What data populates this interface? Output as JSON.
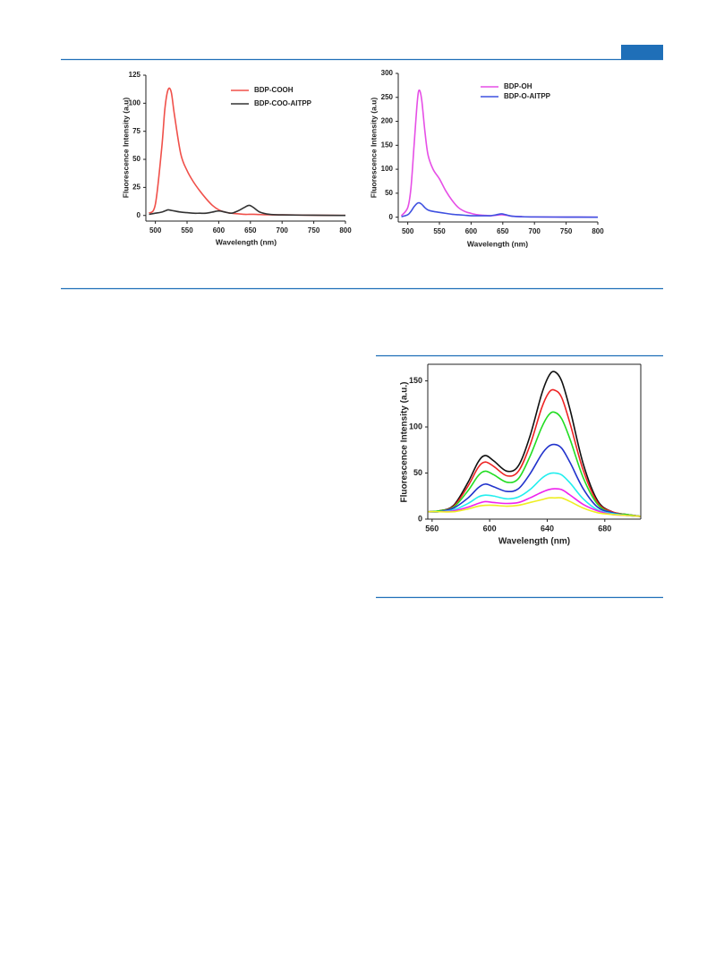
{
  "chart_data": [
    {
      "type": "line",
      "ylabel": "Fluorescence Intensity (a.u)",
      "xlabel": "Wavelength (nm)",
      "x": [
        490,
        500,
        510,
        515,
        520,
        525,
        530,
        540,
        550,
        560,
        570,
        580,
        590,
        600,
        610,
        620,
        630,
        640,
        648,
        655,
        665,
        680,
        700,
        750,
        800
      ],
      "series": [
        {
          "name": "BDP-COOH",
          "color": "#f0504a",
          "values": [
            2,
            10,
            60,
            95,
            112,
            110,
            90,
            55,
            40,
            30,
            22,
            15,
            9,
            5,
            3,
            2,
            1.5,
            1,
            1,
            1,
            0.8,
            0.6,
            0.5,
            0.2,
            0
          ]
        },
        {
          "name": "BDP-COO-AITPP",
          "color": "#333333",
          "values": [
            1,
            2,
            3,
            4,
            5,
            4.5,
            4,
            3,
            2.5,
            2,
            2,
            2,
            3,
            4,
            3,
            2,
            4,
            7,
            9,
            7,
            3,
            1,
            0.5,
            0.2,
            0
          ]
        }
      ],
      "xlim": [
        485,
        800
      ],
      "ylim": [
        -5,
        125
      ],
      "xticks": [
        500,
        550,
        600,
        650,
        700,
        750,
        800
      ],
      "yticks": [
        0,
        25,
        50,
        75,
        100,
        125
      ],
      "legend": "upper right"
    },
    {
      "type": "line",
      "ylabel": "Fluorescence Intensity (a.u)",
      "xlabel": "Wavelength (nm)",
      "x": [
        490,
        500,
        505,
        510,
        515,
        518,
        522,
        527,
        532,
        540,
        550,
        560,
        570,
        580,
        590,
        600,
        610,
        620,
        630,
        640,
        648,
        655,
        665,
        680,
        700,
        750,
        800
      ],
      "series": [
        {
          "name": "BDP-OH",
          "color": "#e64fe6",
          "values": [
            3,
            20,
            60,
            150,
            240,
            265,
            245,
            180,
            130,
            100,
            80,
            55,
            35,
            20,
            12,
            8,
            5,
            4,
            3,
            4,
            5,
            4,
            2,
            1,
            0.5,
            0.2,
            0
          ]
        },
        {
          "name": "BDP-O-AITPP",
          "color": "#3f51e0",
          "values": [
            1,
            5,
            12,
            22,
            29,
            30,
            27,
            20,
            15,
            12,
            10,
            8,
            6,
            5,
            4,
            3,
            3,
            3,
            3,
            5,
            7,
            5,
            2,
            1,
            0.5,
            0.2,
            0
          ]
        }
      ],
      "xlim": [
        485,
        800
      ],
      "ylim": [
        -10,
        300
      ],
      "xticks": [
        500,
        550,
        600,
        650,
        700,
        750,
        800
      ],
      "yticks": [
        0,
        50,
        100,
        150,
        200,
        250,
        300
      ],
      "legend": "upper right"
    },
    {
      "type": "line",
      "ylabel": "Fluorescence Intensity (a.u.)",
      "xlabel": "Wavelength (nm)",
      "x": [
        557,
        565,
        575,
        585,
        592,
        597,
        603,
        612,
        620,
        628,
        636,
        641,
        645,
        650,
        656,
        665,
        675,
        685,
        695,
        705
      ],
      "series": [
        {
          "color": "#111111",
          "values": [
            8,
            9,
            15,
            40,
            62,
            69,
            63,
            52,
            58,
            90,
            135,
            155,
            160,
            150,
            118,
            60,
            20,
            8,
            5,
            3
          ]
        },
        {
          "color": "#ee2222",
          "values": [
            8,
            9,
            14,
            36,
            56,
            62,
            57,
            47,
            52,
            80,
            120,
            137,
            140,
            132,
            103,
            53,
            18,
            8,
            5,
            3
          ]
        },
        {
          "color": "#22dd22",
          "values": [
            8,
            9,
            13,
            31,
            47,
            52,
            48,
            40,
            44,
            68,
            99,
            113,
            116,
            109,
            86,
            45,
            16,
            7,
            5,
            3
          ]
        },
        {
          "color": "#2233cc",
          "values": [
            8,
            8,
            12,
            23,
            34,
            38,
            35,
            30,
            33,
            49,
            70,
            79,
            81,
            77,
            61,
            33,
            13,
            7,
            4,
            3
          ]
        },
        {
          "color": "#22eeee",
          "values": [
            8,
            8,
            10,
            17,
            24,
            26,
            25,
            22,
            24,
            32,
            44,
            49,
            50,
            48,
            39,
            22,
            10,
            6,
            4,
            3
          ]
        },
        {
          "color": "#ee22ee",
          "values": [
            8,
            8,
            9,
            13,
            17,
            19,
            18,
            17,
            18,
            23,
            29,
            32,
            33,
            32,
            26,
            16,
            9,
            5,
            4,
            3
          ]
        },
        {
          "color": "#eeee22",
          "values": [
            8,
            8,
            8,
            11,
            14,
            15,
            15,
            14,
            15,
            18,
            21,
            23,
            23,
            23,
            19,
            12,
            7,
            5,
            4,
            3
          ]
        }
      ],
      "xlim": [
        557,
        705
      ],
      "ylim": [
        0,
        168
      ],
      "xticks": [
        560,
        600,
        640,
        680
      ],
      "yticks": [
        0,
        50,
        100,
        150
      ],
      "frame": true
    }
  ]
}
